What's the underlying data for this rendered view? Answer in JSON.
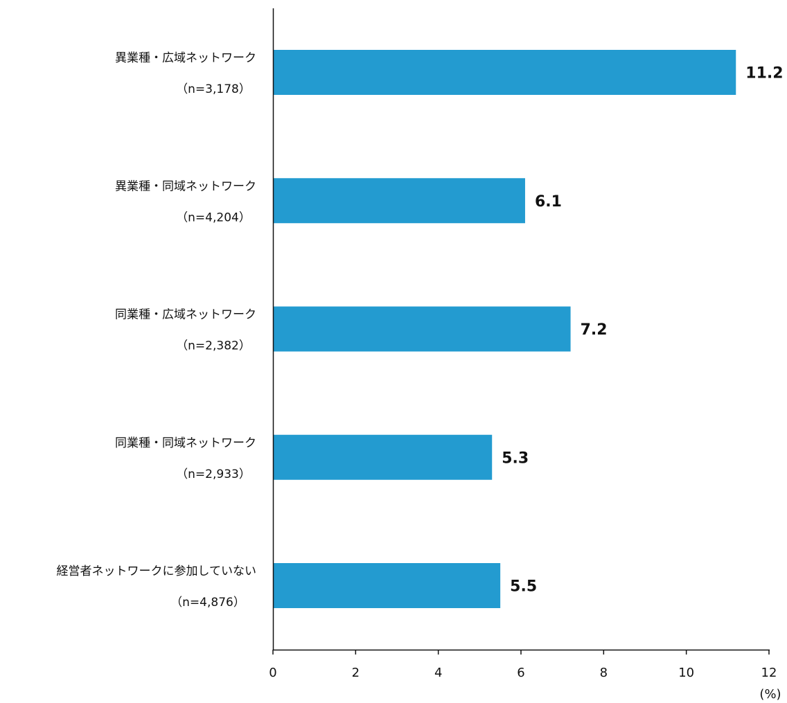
{
  "chart_data": {
    "type": "bar",
    "orientation": "horizontal",
    "categories": [
      {
        "label": "異業種・広域ネットワーク",
        "n": "（n=3,178）"
      },
      {
        "label": "異業種・同域ネットワーク",
        "n": "（n=4,204）"
      },
      {
        "label": "同業種・広域ネットワーク",
        "n": "（n=2,382）"
      },
      {
        "label": "同業種・同域ネットワーク",
        "n": "（n=2,933）"
      },
      {
        "label": "経営者ネットワークに参加していない",
        "n": "（n=4,876）"
      }
    ],
    "values": [
      11.2,
      6.1,
      7.2,
      5.3,
      5.5
    ],
    "value_labels": [
      "11.2",
      "6.1",
      "7.2",
      "5.3",
      "5.5"
    ],
    "xlim": [
      0,
      12
    ],
    "xticks": [
      "0",
      "2",
      "4",
      "6",
      "8",
      "10",
      "12"
    ],
    "xunit": "(%)",
    "grid": false,
    "bar_color": "#239bd0"
  }
}
